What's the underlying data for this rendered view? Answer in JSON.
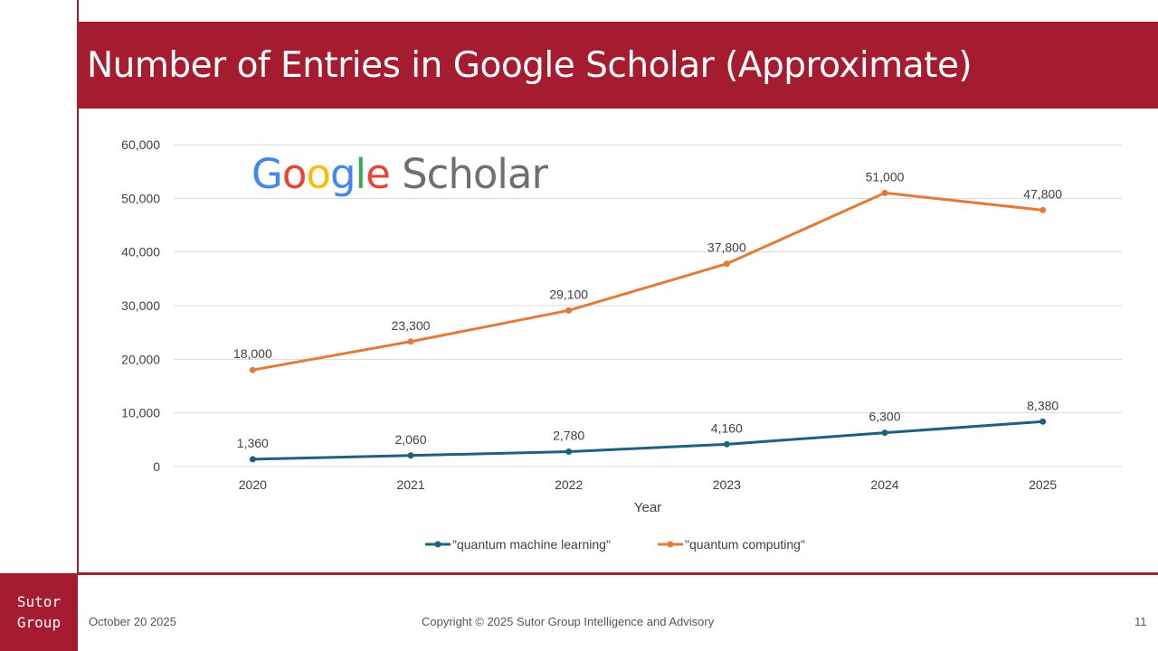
{
  "slide": {
    "title": "Number of Entries in Google Scholar (Approximate)",
    "logo_line1": "Sutor",
    "logo_line2": "Group",
    "date": "October 20 2025",
    "copyright": "Copyright © 2025 Sutor Group Intelligence and Advisory",
    "page_number": "11"
  },
  "overlay_logo": {
    "word1": "Google",
    "word2": "Scholar",
    "letter_colors": [
      "#4285f4",
      "#ea4335",
      "#fbbc05",
      "#4285f4",
      "#34a853",
      "#ea4335"
    ]
  },
  "colors": {
    "brand": "#a51c30",
    "series_qml": "#1f5f7f",
    "series_qc": "#e07b39",
    "grid": "#d9d9d9",
    "text": "#404040"
  },
  "chart_data": {
    "type": "line",
    "title": "",
    "xlabel": "Year",
    "ylabel": "",
    "categories": [
      "2020",
      "2021",
      "2022",
      "2023",
      "2024",
      "2025"
    ],
    "ylim": [
      0,
      60000
    ],
    "yticks": [
      0,
      10000,
      20000,
      30000,
      40000,
      50000,
      60000
    ],
    "ytick_labels": [
      "0",
      "10,000",
      "20,000",
      "30,000",
      "40,000",
      "50,000",
      "60,000"
    ],
    "grid": true,
    "legend_position": "bottom",
    "series": [
      {
        "name": "\"quantum machine learning\"",
        "color": "#1f5f7f",
        "values": [
          1360,
          2060,
          2780,
          4160,
          6300,
          8380
        ],
        "labels": [
          "1,360",
          "2,060",
          "2,780",
          "4,160",
          "6,300",
          "8,380"
        ]
      },
      {
        "name": "\"quantum computing\"",
        "color": "#e07b39",
        "values": [
          18000,
          23300,
          29100,
          37800,
          51000,
          47800
        ],
        "labels": [
          "18,000",
          "23,300",
          "29,100",
          "37,800",
          "51,000",
          "47,800"
        ]
      }
    ]
  }
}
